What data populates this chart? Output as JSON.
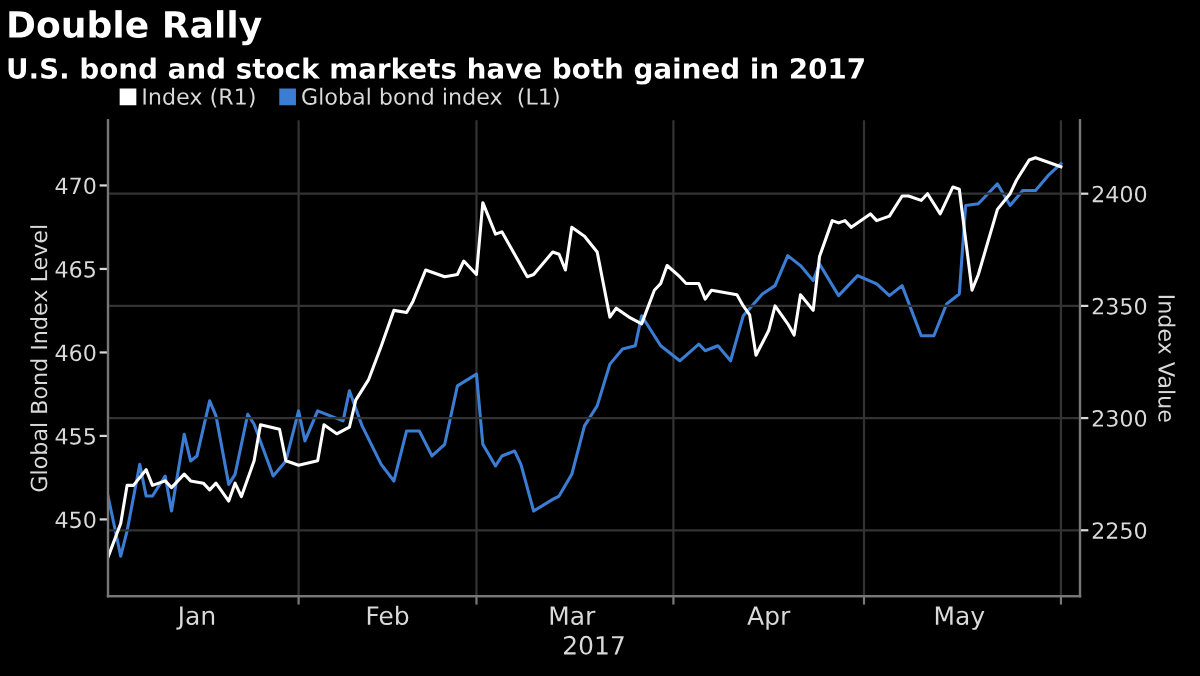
{
  "chart_data": {
    "type": "line",
    "title": "Double Rally",
    "subtitle": "U.S. bond and stock markets have both gained in 2017",
    "xlabel": "2017",
    "ylabel": "Global Bond Index Level",
    "y2label": "Index Value",
    "series": [
      {
        "name": "Index (R1)",
        "color": "#ffffff",
        "axis": "y2",
        "x": [
          "2017-01-02",
          "2017-01-04",
          "2017-01-05",
          "2017-01-06",
          "2017-01-08",
          "2017-01-09",
          "2017-01-11",
          "2017-01-12",
          "2017-01-14",
          "2017-01-15",
          "2017-01-17",
          "2017-01-18",
          "2017-01-19",
          "2017-01-21",
          "2017-01-22",
          "2017-01-23",
          "2017-01-25",
          "2017-01-26",
          "2017-01-29",
          "2017-01-30",
          "2017-02-01",
          "2017-02-04",
          "2017-02-05",
          "2017-02-07",
          "2017-02-09",
          "2017-02-10",
          "2017-02-12",
          "2017-02-14",
          "2017-02-16",
          "2017-02-18",
          "2017-02-19",
          "2017-02-21",
          "2017-02-24",
          "2017-02-26",
          "2017-02-27",
          "2017-03-01",
          "2017-03-02",
          "2017-03-04",
          "2017-03-05",
          "2017-03-07",
          "2017-03-09",
          "2017-03-10",
          "2017-03-13",
          "2017-03-14",
          "2017-03-15",
          "2017-03-16",
          "2017-03-18",
          "2017-03-20",
          "2017-03-22",
          "2017-03-23",
          "2017-03-25",
          "2017-03-27",
          "2017-03-29",
          "2017-03-30",
          "2017-03-31",
          "2017-04-02",
          "2017-04-03",
          "2017-04-05",
          "2017-04-06",
          "2017-04-07",
          "2017-04-09",
          "2017-04-11",
          "2017-04-12",
          "2017-04-13",
          "2017-04-14",
          "2017-04-16",
          "2017-04-17",
          "2017-04-19",
          "2017-04-20",
          "2017-04-21",
          "2017-04-23",
          "2017-04-24",
          "2017-04-26",
          "2017-04-27",
          "2017-04-28",
          "2017-04-29",
          "2017-05-02",
          "2017-05-03",
          "2017-05-05",
          "2017-05-07",
          "2017-05-08",
          "2017-05-10",
          "2017-05-11",
          "2017-05-13",
          "2017-05-15",
          "2017-05-16",
          "2017-05-18",
          "2017-05-19",
          "2017-05-22",
          "2017-05-24",
          "2017-05-25",
          "2017-05-27",
          "2017-05-28",
          "2017-06-01"
        ],
        "values": [
          2238,
          2253,
          2270,
          2270,
          2277,
          2270,
          2272,
          2269,
          2275,
          2272,
          2271,
          2268,
          2271,
          2263,
          2271,
          2265,
          2281,
          2297,
          2295,
          2281,
          2279,
          2281,
          2297,
          2293,
          2296,
          2308,
          2317,
          2332,
          2348,
          2347,
          2352,
          2366,
          2363,
          2364,
          2370,
          2364,
          2396,
          2382,
          2383,
          2373,
          2363,
          2364,
          2374,
          2373,
          2366,
          2385,
          2381,
          2374,
          2345,
          2349,
          2345,
          2342,
          2357,
          2360,
          2368,
          2363,
          2360,
          2360,
          2353,
          2357,
          2356,
          2355,
          2350,
          2346,
          2328,
          2339,
          2350,
          2342,
          2337,
          2355,
          2348,
          2372,
          2388,
          2387,
          2388,
          2385,
          2391,
          2388,
          2390,
          2399,
          2399,
          2397,
          2400,
          2391,
          2403,
          2402,
          2357,
          2364,
          2393,
          2400,
          2406,
          2415,
          2416,
          2412
        ]
      },
      {
        "name": "Global bond index  (L1)",
        "color": "#3c7dd4",
        "x": [
          "2017-01-02",
          "2017-01-04",
          "2017-01-05",
          "2017-01-07",
          "2017-01-08",
          "2017-01-09",
          "2017-01-11",
          "2017-01-12",
          "2017-01-14",
          "2017-01-15",
          "2017-01-16",
          "2017-01-18",
          "2017-01-19",
          "2017-01-21",
          "2017-01-22",
          "2017-01-24",
          "2017-01-25",
          "2017-01-28",
          "2017-01-30",
          "2017-02-01",
          "2017-02-02",
          "2017-02-04",
          "2017-02-06",
          "2017-02-08",
          "2017-02-09",
          "2017-02-11",
          "2017-02-14",
          "2017-02-16",
          "2017-02-18",
          "2017-02-20",
          "2017-02-22",
          "2017-02-24",
          "2017-02-26",
          "2017-03-01",
          "2017-03-02",
          "2017-03-04",
          "2017-03-05",
          "2017-03-07",
          "2017-03-08",
          "2017-03-10",
          "2017-03-13",
          "2017-03-14",
          "2017-03-16",
          "2017-03-18",
          "2017-03-20",
          "2017-03-22",
          "2017-03-24",
          "2017-03-26",
          "2017-03-27",
          "2017-03-30",
          "2017-04-02",
          "2017-04-05",
          "2017-04-06",
          "2017-04-08",
          "2017-04-10",
          "2017-04-12",
          "2017-04-15",
          "2017-04-17",
          "2017-04-19",
          "2017-04-21",
          "2017-04-23",
          "2017-04-24",
          "2017-04-27",
          "2017-04-30",
          "2017-05-03",
          "2017-05-05",
          "2017-05-07",
          "2017-05-10",
          "2017-05-12",
          "2017-05-14",
          "2017-05-16",
          "2017-05-17",
          "2017-05-19",
          "2017-05-22",
          "2017-05-24",
          "2017-05-26",
          "2017-05-28",
          "2017-05-30",
          "2017-06-01"
        ],
        "values": [
          451.4,
          447.8,
          449.3,
          453.3,
          451.4,
          451.4,
          452.6,
          450.5,
          455.1,
          453.5,
          453.8,
          457.1,
          456.2,
          452.1,
          452.7,
          456.3,
          455.7,
          452.6,
          453.5,
          456.5,
          454.7,
          456.5,
          456.2,
          455.9,
          457.7,
          455.6,
          453.3,
          452.3,
          455.3,
          455.3,
          453.8,
          454.5,
          458.0,
          458.7,
          454.5,
          453.2,
          453.8,
          454.1,
          453.3,
          450.5,
          451.2,
          451.4,
          452.7,
          455.6,
          456.8,
          459.3,
          460.2,
          460.4,
          462.2,
          460.4,
          459.5,
          460.5,
          460.1,
          460.4,
          459.5,
          462.2,
          463.5,
          464.0,
          465.8,
          465.2,
          464.3,
          465.3,
          463.4,
          464.6,
          464.1,
          463.4,
          464.0,
          461.0,
          461.0,
          462.9,
          463.5,
          468.8,
          468.9,
          470.1,
          468.8,
          469.7,
          469.7,
          470.6,
          471.3
        ]
      }
    ],
    "xlim": [
      "2017-01-02",
      "2017-06-04"
    ],
    "xticks": [
      {
        "value": "2017-02-01",
        "label": null
      },
      {
        "value": "2017-03-01",
        "label": null
      },
      {
        "value": "2017-04-01",
        "label": null
      },
      {
        "value": "2017-05-01",
        "label": null
      },
      {
        "value": "2017-06-01",
        "label": null
      },
      {
        "value": "2017-01-16",
        "label": "Jan"
      },
      {
        "value": "2017-02-15",
        "label": "Feb"
      },
      {
        "value": "2017-03-16",
        "label": "Mar"
      },
      {
        "value": "2017-04-16",
        "label": "Apr"
      },
      {
        "value": "2017-05-16",
        "label": "May"
      }
    ],
    "ylim": [
      445.4,
      473.9
    ],
    "yticks": [
      450,
      455,
      460,
      465,
      470
    ],
    "y2lim": [
      2220.6,
      2432.7
    ],
    "y2ticks": [
      2250,
      2300,
      2350,
      2400
    ],
    "grid": true,
    "legend": "top left",
    "marker": "none",
    "line_style": "solid"
  }
}
